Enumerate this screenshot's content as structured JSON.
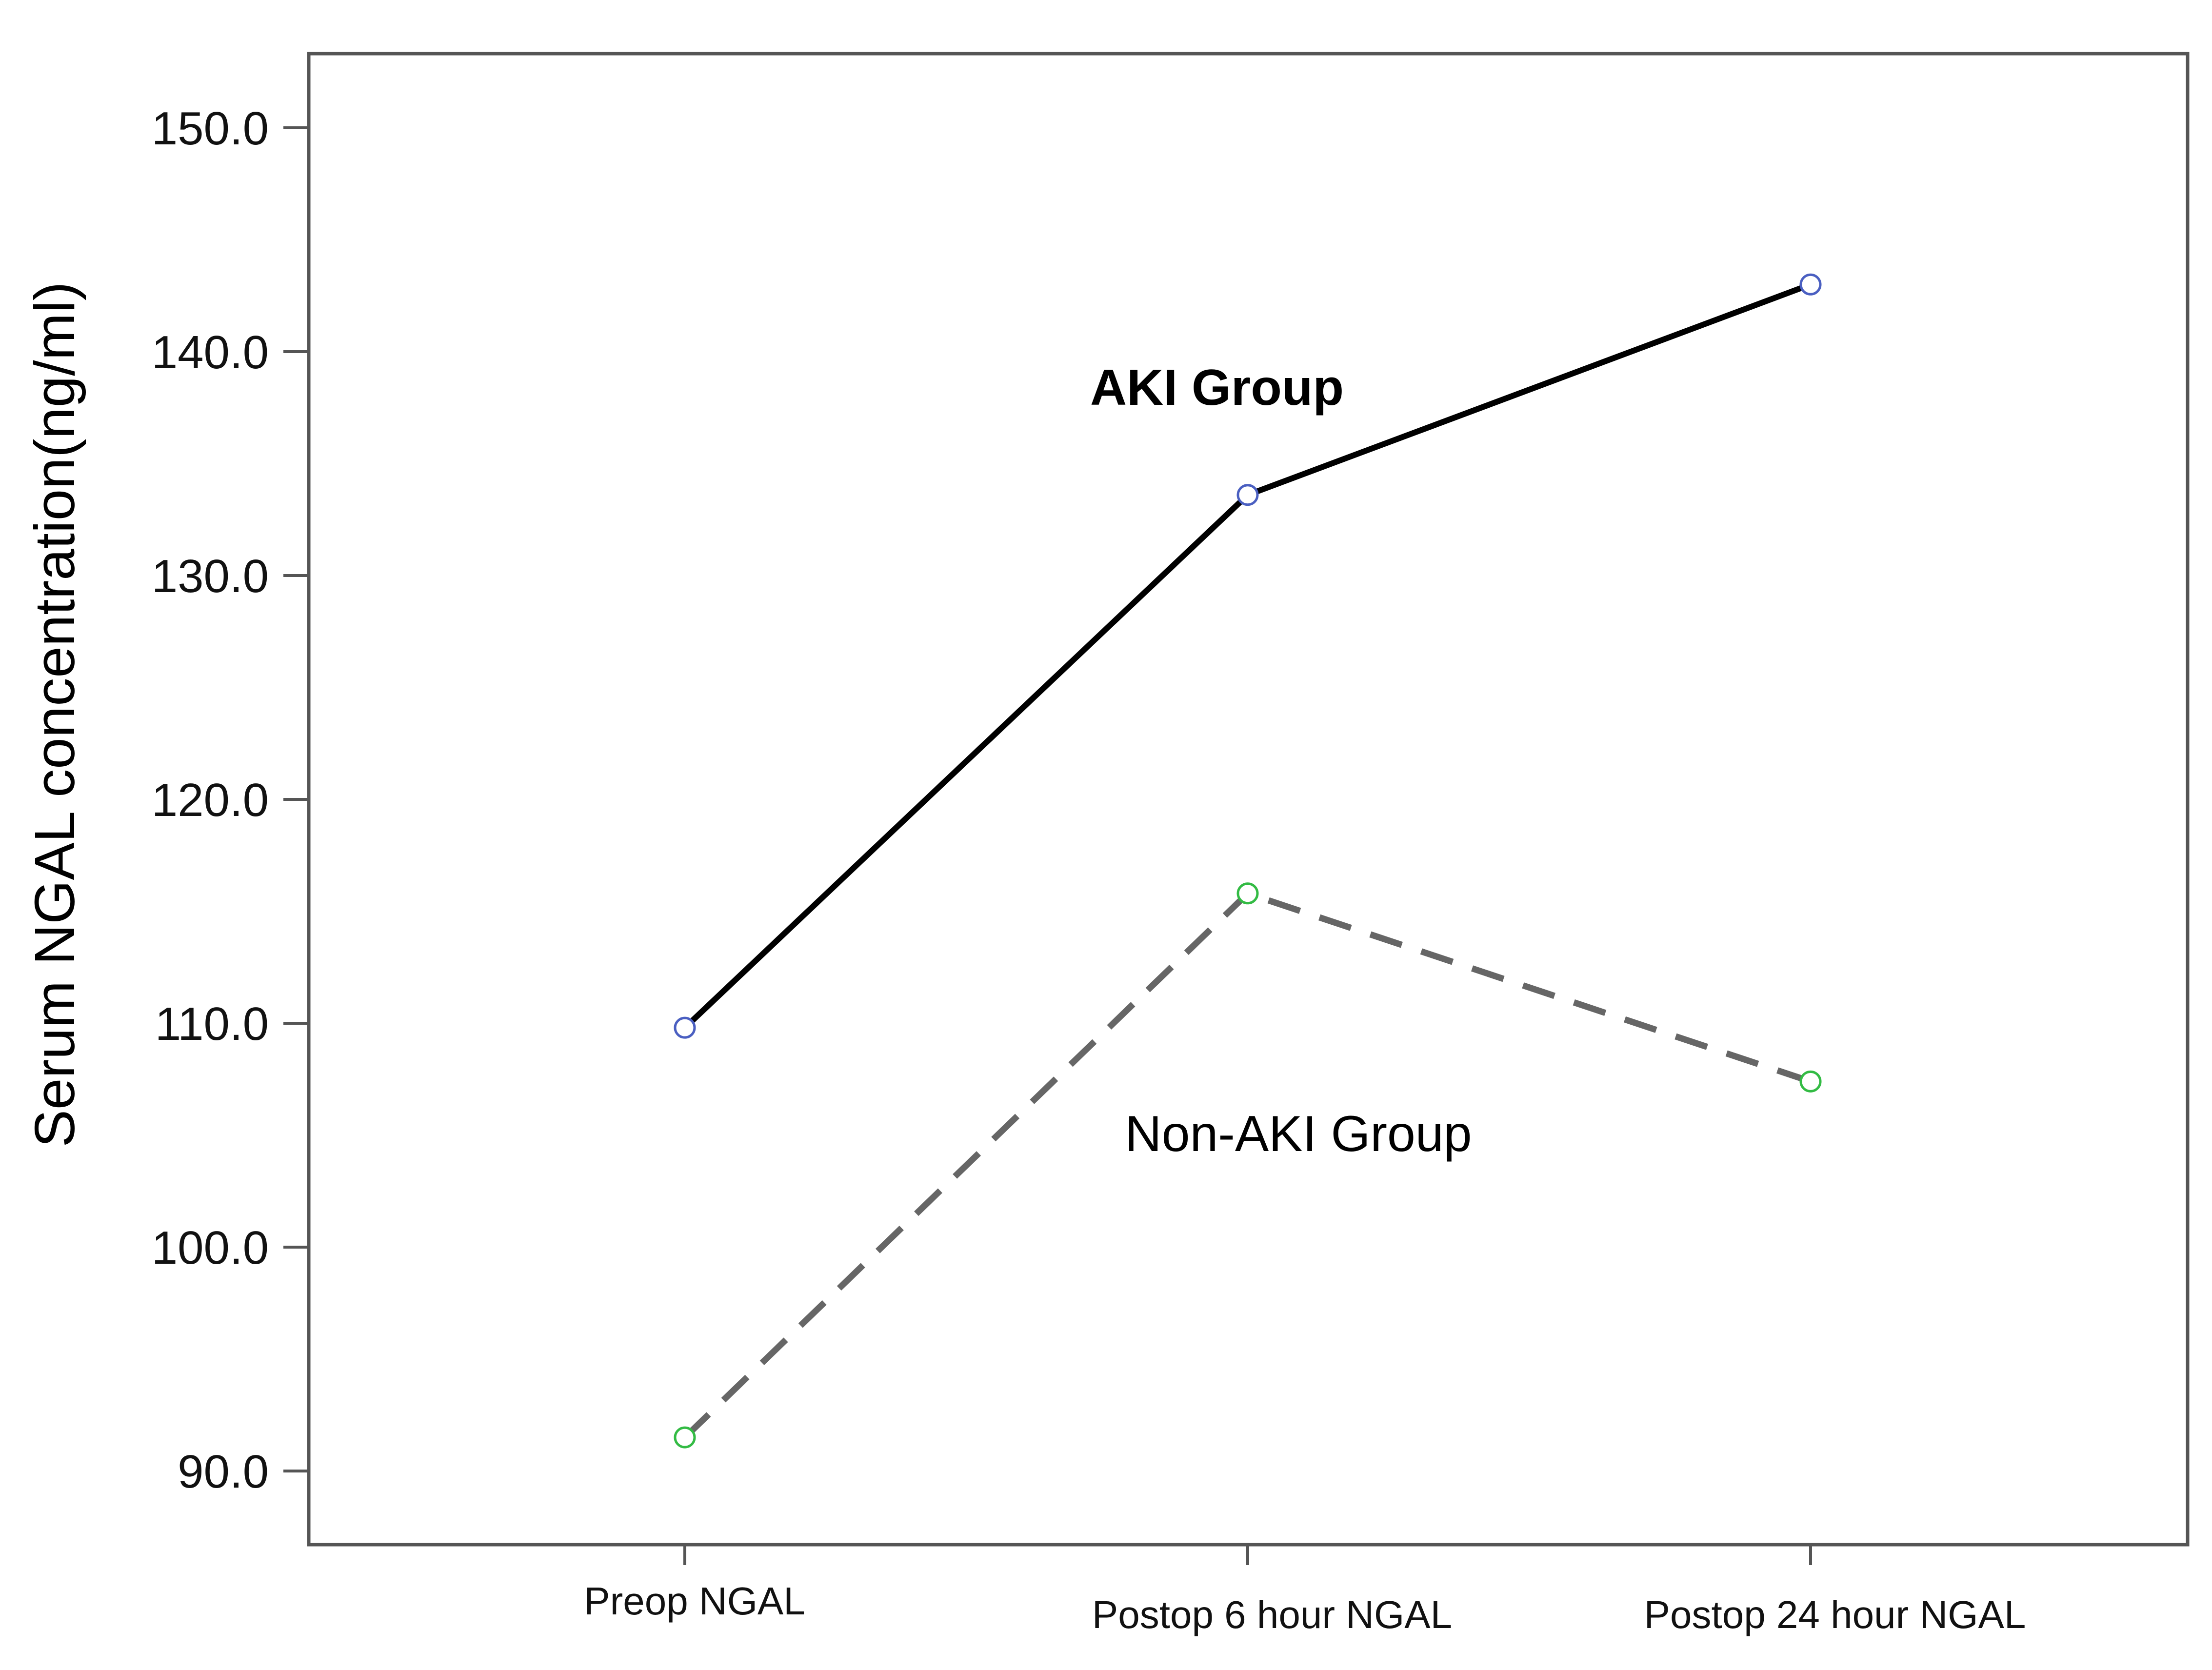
{
  "chart_data": {
    "type": "line",
    "title": "",
    "xlabel": "",
    "ylabel": "Serum NGAL concentration(ng/ml)",
    "categories": [
      "Preop NGAL",
      "Postop 6 hour NGAL",
      "Postop 24 hour NGAL"
    ],
    "ylim": [
      86.7,
      153.3
    ],
    "yticks": [
      90.0,
      100.0,
      110.0,
      120.0,
      130.0,
      140.0,
      150.0
    ],
    "grid": false,
    "series": [
      {
        "name": "AKI Group",
        "values": [
          109.8,
          133.6,
          143.0
        ],
        "line_color": "#000000",
        "marker_color": "#4a5fc1",
        "line_style": "solid"
      },
      {
        "name": "Non-AKI Group",
        "values": [
          91.5,
          115.8,
          107.4
        ],
        "line_color": "#666666",
        "marker_color": "#33bb44",
        "line_style": "dashed"
      }
    ],
    "annotations": [
      {
        "text": "AKI Group",
        "series": 0,
        "bold": true
      },
      {
        "text": "Non-AKI Group",
        "series": 1,
        "bold": false
      }
    ]
  }
}
